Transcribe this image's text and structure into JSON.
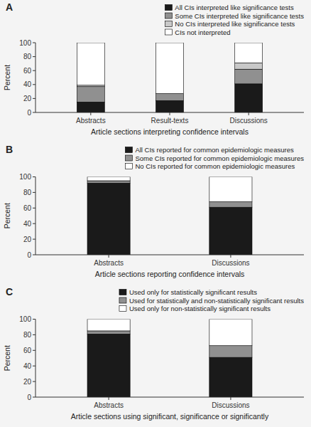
{
  "chart_data": [
    {
      "type": "bar",
      "stacked": true,
      "title": "A",
      "categories": [
        "Abstracts",
        "Result-texts",
        "Discussions"
      ],
      "series": [
        {
          "name": "All CIs interpreted like significance tests",
          "color": "#1a1a1a",
          "values": [
            15,
            17,
            41
          ]
        },
        {
          "name": "Some CIs interpreted like significance tests",
          "color": "#909090",
          "values": [
            22,
            10,
            21
          ]
        },
        {
          "name": "No CIs interpreted like significance tests",
          "color": "#c8c8c8",
          "values": [
            2,
            0,
            9
          ]
        },
        {
          "name": "CIs not interpreted",
          "color": "#ffffff",
          "values": [
            61,
            73,
            29
          ]
        }
      ],
      "x_label": "Article sections interpreting confidence intervals",
      "y_label": "Percent",
      "ylim": [
        0,
        100
      ],
      "yticks": [
        0,
        20,
        40,
        60,
        80,
        100
      ],
      "grid": false,
      "legend": "upper right"
    },
    {
      "type": "bar",
      "stacked": true,
      "title": "B",
      "categories": [
        "Abstracts",
        "Discussions"
      ],
      "series": [
        {
          "name": "All CIs reported for common epidemiologic measures",
          "color": "#1a1a1a",
          "values": [
            92,
            61
          ]
        },
        {
          "name": "Some CIs reported for common epidemiologic measures",
          "color": "#909090",
          "values": [
            3,
            7
          ]
        },
        {
          "name": "No CIs reported for common epidemiologic measures",
          "color": "#ffffff",
          "values": [
            5,
            32
          ]
        }
      ],
      "x_label": "Article sections reporting confidence intervals",
      "y_label": "Percent",
      "ylim": [
        0,
        100
      ],
      "yticks": [
        0,
        20,
        40,
        60,
        80,
        100
      ],
      "grid": false,
      "legend": "upper right"
    },
    {
      "type": "bar",
      "stacked": true,
      "title": "C",
      "categories": [
        "Abstracts",
        "Discussions"
      ],
      "series": [
        {
          "name": "Used only for statistically significant results",
          "color": "#1a1a1a",
          "values": [
            81,
            51
          ]
        },
        {
          "name": "Used for statistically and non-statistically significant results",
          "color": "#909090",
          "values": [
            4,
            15
          ]
        },
        {
          "name": "Used only for non-statistically significant results",
          "color": "#ffffff",
          "values": [
            15,
            34
          ]
        }
      ],
      "x_label": "Article sections using significant, significance or significantly",
      "y_label": "Percent",
      "ylim": [
        0,
        100
      ],
      "yticks": [
        0,
        20,
        40,
        60,
        80,
        100
      ],
      "grid": false,
      "legend": "upper right"
    }
  ]
}
